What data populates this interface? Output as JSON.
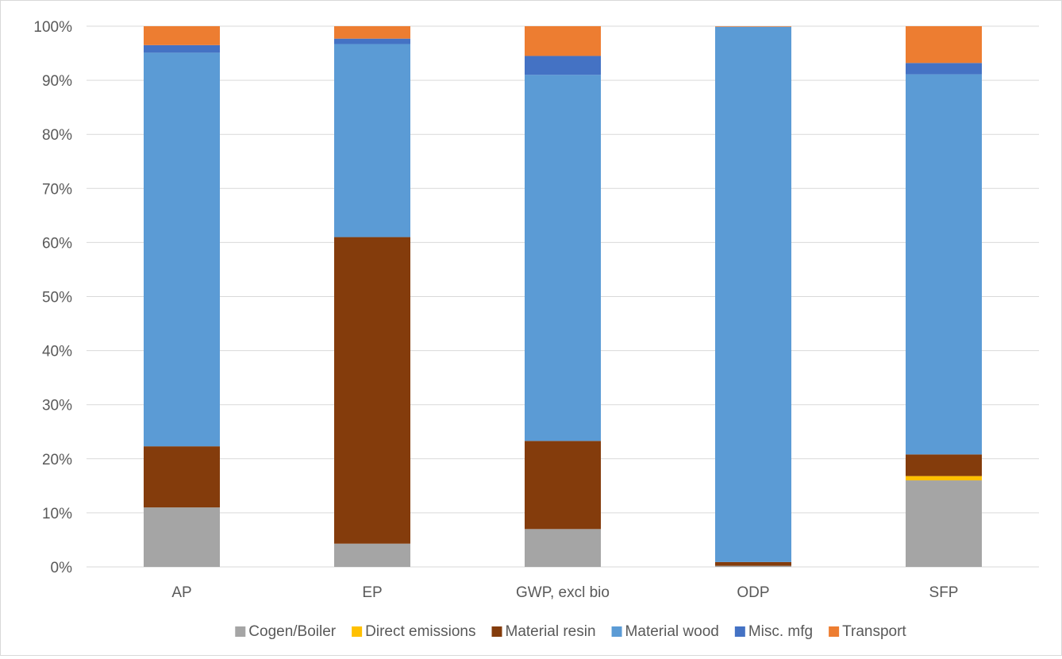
{
  "chart_data": {
    "type": "bar",
    "stacked": true,
    "percent": true,
    "title": "",
    "xlabel": "",
    "ylabel": "",
    "ylim": [
      0,
      100
    ],
    "yticks": [
      "0%",
      "10%",
      "20%",
      "30%",
      "40%",
      "50%",
      "60%",
      "70%",
      "80%",
      "90%",
      "100%"
    ],
    "grid": true,
    "legend_position": "bottom",
    "categories": [
      "AP",
      "EP",
      "GWP, excl bio",
      "ODP",
      "SFP"
    ],
    "series": [
      {
        "name": "Cogen/Boiler",
        "color": "#a5a5a5",
        "values": [
          11.0,
          4.3,
          7.0,
          0.2,
          16.0
        ]
      },
      {
        "name": "Direct emissions",
        "color": "#ffc000",
        "values": [
          0.0,
          0.0,
          0.0,
          0.0,
          0.8
        ]
      },
      {
        "name": "Material resin",
        "color": "#843c0c",
        "values": [
          11.3,
          56.7,
          16.3,
          0.7,
          4.0
        ]
      },
      {
        "name": "Material wood",
        "color": "#5b9bd5",
        "values": [
          72.8,
          35.7,
          67.7,
          99.0,
          70.3
        ]
      },
      {
        "name": "Misc. mfg",
        "color": "#4472c4",
        "values": [
          1.4,
          1.0,
          3.5,
          0.0,
          2.1
        ]
      },
      {
        "name": "Transport",
        "color": "#ed7d31",
        "values": [
          3.5,
          2.3,
          5.5,
          0.1,
          6.8
        ]
      }
    ]
  }
}
